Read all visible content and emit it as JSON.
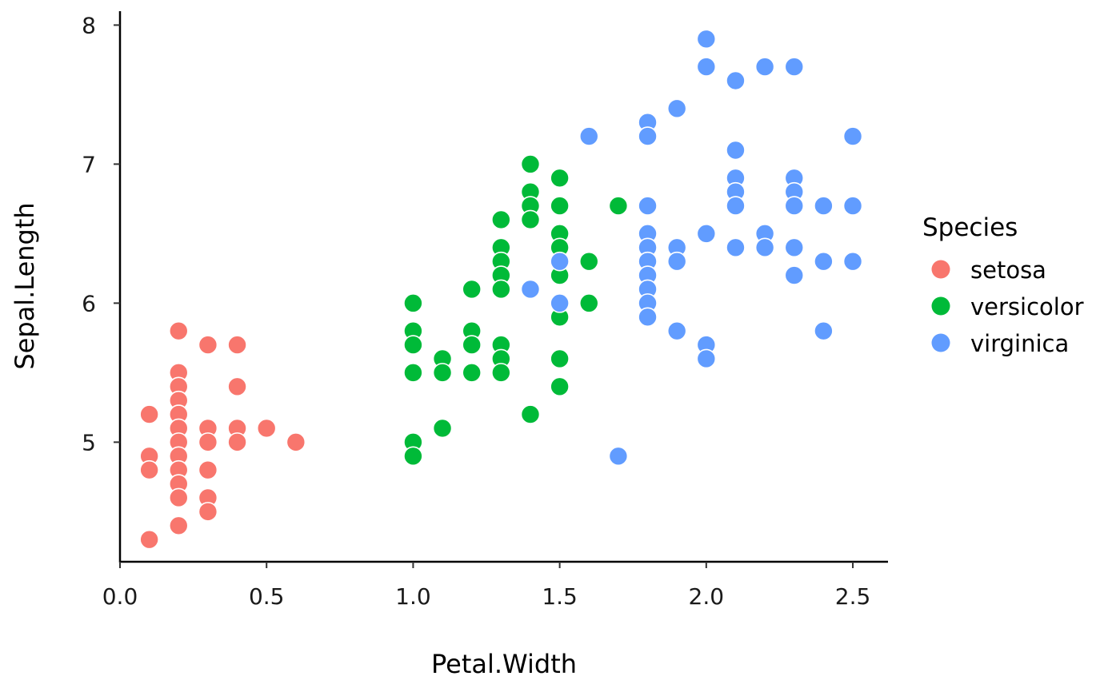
{
  "chart_data": {
    "type": "scatter",
    "xlabel": "Petal.Width",
    "ylabel": "Sepal.Length",
    "xlim": [
      0,
      2.62
    ],
    "ylim": [
      4.14,
      8.1
    ],
    "x_ticks": [
      0.0,
      0.5,
      1.0,
      1.5,
      2.0,
      2.5
    ],
    "x_tick_labels": [
      "0.0",
      "0.5",
      "1.0",
      "1.5",
      "2.0",
      "2.5"
    ],
    "y_ticks": [
      5,
      6,
      7,
      8
    ],
    "y_tick_labels": [
      "5",
      "6",
      "7",
      "8"
    ],
    "grid": false,
    "legend": {
      "title": "Species",
      "placement": "right"
    },
    "series": [
      {
        "name": "setosa",
        "color": "#F8766D",
        "points": [
          [
            0.1,
            5.2
          ],
          [
            0.1,
            4.9
          ],
          [
            0.1,
            4.8
          ],
          [
            0.1,
            4.3
          ],
          [
            0.2,
            5.8
          ],
          [
            0.2,
            5.5
          ],
          [
            0.2,
            5.4
          ],
          [
            0.2,
            5.3
          ],
          [
            0.2,
            5.2
          ],
          [
            0.2,
            5.1
          ],
          [
            0.2,
            5.0
          ],
          [
            0.2,
            4.9
          ],
          [
            0.2,
            4.8
          ],
          [
            0.2,
            4.7
          ],
          [
            0.2,
            4.6
          ],
          [
            0.2,
            4.4
          ],
          [
            0.3,
            5.7
          ],
          [
            0.3,
            5.1
          ],
          [
            0.3,
            5.0
          ],
          [
            0.3,
            4.8
          ],
          [
            0.3,
            4.6
          ],
          [
            0.3,
            4.5
          ],
          [
            0.4,
            5.7
          ],
          [
            0.4,
            5.4
          ],
          [
            0.4,
            5.1
          ],
          [
            0.4,
            5.0
          ],
          [
            0.5,
            5.1
          ],
          [
            0.6,
            5.0
          ]
        ]
      },
      {
        "name": "versicolor",
        "color": "#00BA38",
        "points": [
          [
            1.0,
            6.0
          ],
          [
            1.0,
            5.8
          ],
          [
            1.0,
            5.7
          ],
          [
            1.0,
            5.5
          ],
          [
            1.0,
            5.0
          ],
          [
            1.0,
            4.9
          ],
          [
            1.1,
            5.6
          ],
          [
            1.1,
            5.5
          ],
          [
            1.1,
            5.1
          ],
          [
            1.2,
            6.1
          ],
          [
            1.2,
            5.8
          ],
          [
            1.2,
            5.7
          ],
          [
            1.2,
            5.5
          ],
          [
            1.3,
            6.6
          ],
          [
            1.3,
            6.4
          ],
          [
            1.3,
            6.3
          ],
          [
            1.3,
            6.2
          ],
          [
            1.3,
            6.1
          ],
          [
            1.3,
            5.7
          ],
          [
            1.3,
            5.6
          ],
          [
            1.3,
            5.5
          ],
          [
            1.4,
            7.0
          ],
          [
            1.4,
            6.8
          ],
          [
            1.4,
            6.7
          ],
          [
            1.4,
            6.6
          ],
          [
            1.4,
            5.2
          ],
          [
            1.5,
            6.9
          ],
          [
            1.5,
            6.7
          ],
          [
            1.5,
            6.5
          ],
          [
            1.5,
            6.4
          ],
          [
            1.5,
            6.2
          ],
          [
            1.5,
            5.9
          ],
          [
            1.5,
            5.6
          ],
          [
            1.5,
            5.4
          ],
          [
            1.6,
            6.3
          ],
          [
            1.6,
            6.0
          ],
          [
            1.7,
            6.7
          ]
        ]
      },
      {
        "name": "virginica",
        "color": "#619CFF",
        "points": [
          [
            1.4,
            6.1
          ],
          [
            1.5,
            6.3
          ],
          [
            1.5,
            6.0
          ],
          [
            1.6,
            7.2
          ],
          [
            1.7,
            4.9
          ],
          [
            1.8,
            7.3
          ],
          [
            1.8,
            7.2
          ],
          [
            1.8,
            6.7
          ],
          [
            1.8,
            6.5
          ],
          [
            1.8,
            6.4
          ],
          [
            1.8,
            6.3
          ],
          [
            1.8,
            6.2
          ],
          [
            1.8,
            6.1
          ],
          [
            1.8,
            6.0
          ],
          [
            1.8,
            5.9
          ],
          [
            1.9,
            7.4
          ],
          [
            1.9,
            6.4
          ],
          [
            1.9,
            6.3
          ],
          [
            1.9,
            5.8
          ],
          [
            2.0,
            7.9
          ],
          [
            2.0,
            7.7
          ],
          [
            2.0,
            6.5
          ],
          [
            2.0,
            5.7
          ],
          [
            2.0,
            5.6
          ],
          [
            2.1,
            7.6
          ],
          [
            2.1,
            7.1
          ],
          [
            2.1,
            6.9
          ],
          [
            2.1,
            6.8
          ],
          [
            2.1,
            6.7
          ],
          [
            2.1,
            6.4
          ],
          [
            2.2,
            7.7
          ],
          [
            2.2,
            6.5
          ],
          [
            2.2,
            6.4
          ],
          [
            2.3,
            7.7
          ],
          [
            2.3,
            6.9
          ],
          [
            2.3,
            6.8
          ],
          [
            2.3,
            6.7
          ],
          [
            2.3,
            6.4
          ],
          [
            2.3,
            6.2
          ],
          [
            2.4,
            6.7
          ],
          [
            2.4,
            6.3
          ],
          [
            2.4,
            5.8
          ],
          [
            2.5,
            7.2
          ],
          [
            2.5,
            6.7
          ],
          [
            2.5,
            6.3
          ]
        ]
      }
    ]
  }
}
